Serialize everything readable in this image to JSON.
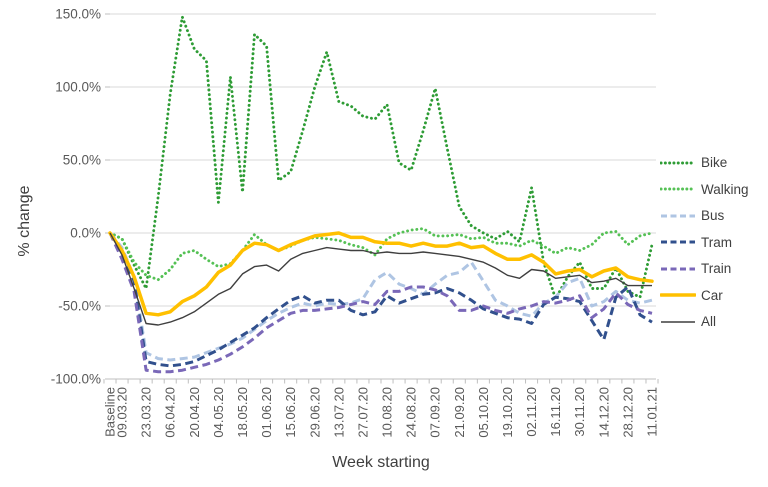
{
  "chart_data": {
    "type": "line",
    "title": "",
    "xlabel": "Week starting",
    "ylabel": "% change",
    "ylim": [
      -100,
      150
    ],
    "grid": "horizontal",
    "legend_position": "right",
    "y_ticks": [
      150,
      100,
      50,
      0,
      -50,
      -100
    ],
    "y_tick_labels": [
      "150.0%",
      "100.0%",
      "50.0%",
      "0.0%",
      "-50.0%",
      "-100.0%"
    ],
    "x_note": "weekly data points; category labels shown every second week",
    "x_tick_labels": [
      "Baseline",
      "09.03.20",
      "23.03.20",
      "06.04.20",
      "20.04.20",
      "04.05.20",
      "18.05.20",
      "01.06.20",
      "15.06.20",
      "29.06.20",
      "13.07.20",
      "27.07.20",
      "10.08.20",
      "24.08.20",
      "07.09.20",
      "21.09.20",
      "05.10.20",
      "19.10.20",
      "02.11.20",
      "16.11.20",
      "30.11.20",
      "14.12.20",
      "28.12.20",
      "11.01.21"
    ],
    "x_tick_indices": [
      0,
      1,
      3,
      5,
      7,
      9,
      11,
      13,
      15,
      17,
      19,
      21,
      23,
      25,
      27,
      29,
      31,
      33,
      35,
      37,
      39,
      41,
      43,
      45
    ],
    "series": [
      {
        "name": "Bike",
        "color": "#2e9c35",
        "style": "dotted",
        "values": [
          0,
          -4,
          -22,
          -38,
          25,
          95,
          148,
          126,
          118,
          21,
          107,
          28,
          136,
          128,
          36,
          42,
          70,
          100,
          124,
          90,
          87,
          80,
          78,
          88,
          48,
          43,
          70,
          99,
          58,
          18,
          5,
          0,
          -4,
          1,
          -6,
          31,
          -20,
          -45,
          -30,
          -20,
          -38,
          -38,
          -24,
          -40,
          -44,
          -8
        ]
      },
      {
        "name": "Walking",
        "color": "#55c155",
        "style": "dotted",
        "values": [
          0,
          -4,
          -20,
          -29,
          -32,
          -25,
          -14,
          -12,
          -18,
          -23,
          -21,
          -12,
          -1,
          -8,
          -12,
          -9,
          -5,
          -3,
          -4,
          -5,
          -8,
          -10,
          -15,
          -4,
          0,
          2,
          3,
          -2,
          -2,
          -1,
          -4,
          -3,
          -7,
          -7,
          -9,
          -5,
          -9,
          -14,
          -10,
          -12,
          -8,
          0,
          1,
          -8,
          -2,
          0
        ]
      },
      {
        "name": "Bus",
        "color": "#afc5e3",
        "style": "dashed",
        "values": [
          0,
          -10,
          -30,
          -82,
          -86,
          -87,
          -86,
          -85,
          -82,
          -79,
          -76,
          -72,
          -66,
          -60,
          -55,
          -51,
          -48,
          -50,
          -48,
          -49,
          -48,
          -45,
          -32,
          -27,
          -35,
          -38,
          -42,
          -35,
          -29,
          -27,
          -20,
          -33,
          -46,
          -50,
          -55,
          -57,
          -48,
          -44,
          -34,
          -31,
          -50,
          -47,
          -40,
          -46,
          -48,
          -46
        ]
      },
      {
        "name": "Tram",
        "color": "#31508d",
        "style": "dashed",
        "values": [
          0,
          -14,
          -33,
          -88,
          -90,
          -91,
          -90,
          -88,
          -84,
          -80,
          -75,
          -70,
          -65,
          -58,
          -52,
          -46,
          -43,
          -48,
          -46,
          -46,
          -53,
          -56,
          -54,
          -43,
          -48,
          -45,
          -42,
          -41,
          -38,
          -41,
          -46,
          -52,
          -55,
          -58,
          -59,
          -62,
          -49,
          -44,
          -45,
          -47,
          -60,
          -73,
          -44,
          -37,
          -56,
          -61
        ]
      },
      {
        "name": "Train",
        "color": "#7a68b8",
        "style": "dashed",
        "values": [
          0,
          -18,
          -40,
          -94,
          -95,
          -95,
          -94,
          -92,
          -90,
          -87,
          -83,
          -78,
          -72,
          -65,
          -60,
          -55,
          -53,
          -53,
          -52,
          -51,
          -49,
          -47,
          -49,
          -40,
          -40,
          -37,
          -37,
          -39,
          -43,
          -53,
          -53,
          -50,
          -53,
          -55,
          -52,
          -50,
          -47,
          -48,
          -46,
          -43,
          -58,
          -52,
          -41,
          -49,
          -53,
          -55
        ]
      },
      {
        "name": "Car",
        "color": "#ffc000",
        "style": "solid",
        "values": [
          0,
          -12,
          -30,
          -55,
          -56,
          -54,
          -47,
          -43,
          -37,
          -27,
          -22,
          -12,
          -7,
          -8,
          -12,
          -8,
          -5,
          -2,
          -1,
          0,
          -3,
          -3,
          -6,
          -7,
          -7,
          -9,
          -7,
          -9,
          -9,
          -7,
          -10,
          -9,
          -14,
          -18,
          -18,
          -15,
          -20,
          -28,
          -26,
          -25,
          -30,
          -26,
          -24,
          -30,
          -32,
          -33
        ]
      },
      {
        "name": "All",
        "color": "#3f3f3f",
        "style": "thin-solid",
        "values": [
          0,
          -15,
          -38,
          -62,
          -63,
          -61,
          -58,
          -54,
          -48,
          -42,
          -38,
          -28,
          -23,
          -22,
          -26,
          -18,
          -14,
          -12,
          -10,
          -11,
          -12,
          -12,
          -14,
          -13,
          -14,
          -14,
          -13,
          -14,
          -15,
          -16,
          -18,
          -20,
          -24,
          -29,
          -31,
          -25,
          -26,
          -31,
          -30,
          -29,
          -34,
          -33,
          -31,
          -36,
          -36,
          -36
        ]
      }
    ],
    "axis_colors": {
      "tick_label": "#595959",
      "gridline": "#d9d9d9",
      "axis_line": "#bfbfbf"
    }
  }
}
